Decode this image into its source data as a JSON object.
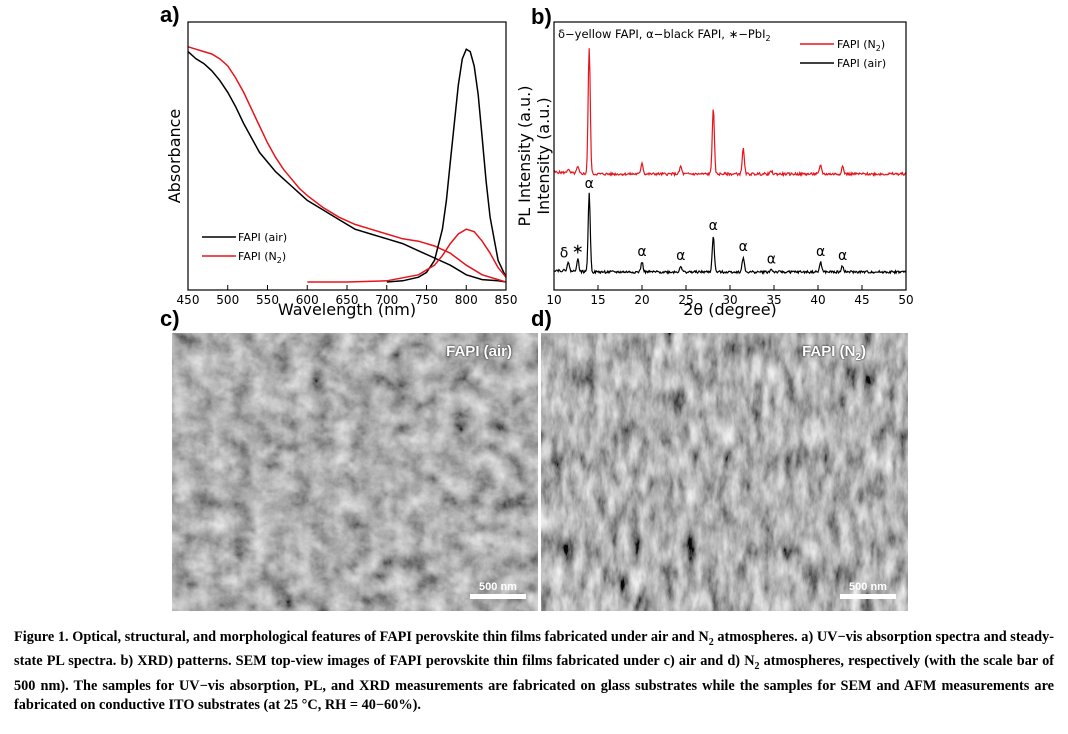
{
  "panels": {
    "a": "a)",
    "b": "b)",
    "c": "c)",
    "d": "d)"
  },
  "chart_data": [
    {
      "type": "line",
      "panel": "a",
      "xlabel": "Wavelength (nm)",
      "ylabel": "Absorbance",
      "ylabel_right": "PL Intensity (a.u.)",
      "xlim": [
        450,
        850
      ],
      "ylim": [
        0,
        1
      ],
      "xticks": [
        "450",
        "500",
        "550",
        "600",
        "650",
        "700",
        "750",
        "800",
        "850"
      ],
      "legend": [
        {
          "name": "FAPI (air)",
          "color": "#000000"
        },
        {
          "name": "FAPI (N",
          "sub": "2",
          "tail": ")",
          "color": "#e8141b"
        }
      ],
      "legend_position": "bottom-left",
      "series": [
        {
          "name": "FAPI (air) absorbance",
          "color": "#000000",
          "x": [
            450,
            460,
            470,
            480,
            490,
            500,
            510,
            520,
            530,
            540,
            550,
            560,
            570,
            580,
            590,
            600,
            620,
            640,
            660,
            680,
            700,
            720,
            740,
            760,
            780,
            800,
            820,
            840,
            850
          ],
          "y": [
            0.96,
            0.93,
            0.91,
            0.88,
            0.84,
            0.79,
            0.73,
            0.66,
            0.6,
            0.54,
            0.5,
            0.46,
            0.43,
            0.4,
            0.37,
            0.34,
            0.3,
            0.26,
            0.22,
            0.2,
            0.18,
            0.16,
            0.13,
            0.1,
            0.07,
            0.03,
            0.01,
            0.005,
            0.0
          ]
        },
        {
          "name": "FAPI (N2) absorbance",
          "color": "#e8141b",
          "x": [
            450,
            460,
            470,
            480,
            490,
            500,
            510,
            520,
            530,
            540,
            550,
            560,
            570,
            580,
            590,
            600,
            620,
            640,
            660,
            680,
            700,
            720,
            740,
            760,
            780,
            800,
            820,
            840,
            850
          ],
          "y": [
            0.98,
            0.97,
            0.96,
            0.95,
            0.93,
            0.9,
            0.85,
            0.79,
            0.72,
            0.65,
            0.58,
            0.52,
            0.47,
            0.43,
            0.39,
            0.36,
            0.31,
            0.27,
            0.24,
            0.22,
            0.2,
            0.18,
            0.17,
            0.15,
            0.12,
            0.07,
            0.03,
            0.01,
            0.0
          ]
        },
        {
          "name": "FAPI (air) PL",
          "color": "#000000",
          "x": [
            700,
            720,
            740,
            750,
            760,
            770,
            775,
            780,
            785,
            790,
            795,
            800,
            805,
            810,
            815,
            820,
            825,
            830,
            840,
            850
          ],
          "y": [
            0.0,
            0.005,
            0.02,
            0.04,
            0.09,
            0.22,
            0.34,
            0.5,
            0.66,
            0.82,
            0.93,
            0.97,
            0.96,
            0.9,
            0.78,
            0.6,
            0.42,
            0.27,
            0.09,
            0.02
          ]
        },
        {
          "name": "FAPI (N2) PL",
          "color": "#e8141b",
          "x": [
            600,
            650,
            700,
            740,
            760,
            770,
            780,
            790,
            800,
            810,
            820,
            830,
            840,
            850
          ],
          "y": [
            0.0,
            0.0,
            0.005,
            0.03,
            0.07,
            0.11,
            0.16,
            0.2,
            0.22,
            0.21,
            0.17,
            0.12,
            0.06,
            0.02
          ]
        }
      ]
    },
    {
      "type": "line",
      "panel": "b",
      "xlabel": "2θ (degree)",
      "ylabel": "Intensity (a.u.)",
      "xlim": [
        10,
        50
      ],
      "xticks": [
        "10",
        "15",
        "20",
        "25",
        "30",
        "35",
        "40",
        "45",
        "50"
      ],
      "annotation": "δ−yellow FAPI, α−black FAPI, ∗−PbI",
      "annotation_sub": "2",
      "legend": [
        {
          "name": "FAPI (N",
          "sub": "2",
          "tail": ")",
          "color": "#e8141b"
        },
        {
          "name": "FAPI (air)",
          "color": "#000000"
        }
      ],
      "legend_position": "top-right",
      "peaks_labels": [
        {
          "x": 11.6,
          "label": "δ"
        },
        {
          "x": 12.7,
          "label": "∗"
        },
        {
          "x": 14.0,
          "label": "α"
        },
        {
          "x": 20.0,
          "label": "α"
        },
        {
          "x": 24.4,
          "label": "α"
        },
        {
          "x": 28.1,
          "label": "α"
        },
        {
          "x": 31.5,
          "label": "α"
        },
        {
          "x": 34.7,
          "label": "α"
        },
        {
          "x": 40.3,
          "label": "α"
        },
        {
          "x": 42.8,
          "label": "α"
        }
      ],
      "series": [
        {
          "name": "FAPI (N2)",
          "color": "#e8141b",
          "offset": 0.55,
          "peaks": [
            {
              "x": 11.6,
              "h": 0.03
            },
            {
              "x": 12.7,
              "h": 0.05
            },
            {
              "x": 14.0,
              "h": 1.0
            },
            {
              "x": 20.0,
              "h": 0.09
            },
            {
              "x": 24.4,
              "h": 0.06
            },
            {
              "x": 28.1,
              "h": 0.52
            },
            {
              "x": 31.5,
              "h": 0.2
            },
            {
              "x": 34.7,
              "h": 0.02
            },
            {
              "x": 40.3,
              "h": 0.07
            },
            {
              "x": 42.8,
              "h": 0.06
            }
          ]
        },
        {
          "name": "FAPI (air)",
          "color": "#000000",
          "offset": 0.0,
          "peaks": [
            {
              "x": 11.6,
              "h": 0.07
            },
            {
              "x": 12.7,
              "h": 0.1
            },
            {
              "x": 14.0,
              "h": 0.63
            },
            {
              "x": 20.0,
              "h": 0.08
            },
            {
              "x": 24.4,
              "h": 0.05
            },
            {
              "x": 28.1,
              "h": 0.29
            },
            {
              "x": 31.5,
              "h": 0.12
            },
            {
              "x": 34.7,
              "h": 0.02
            },
            {
              "x": 40.3,
              "h": 0.08
            },
            {
              "x": 42.8,
              "h": 0.05
            }
          ]
        }
      ]
    }
  ],
  "sem": {
    "c": {
      "label": "FAPI (air)",
      "scale": "500 nm"
    },
    "d": {
      "label_main": "FAPI (N",
      "label_sub": "2",
      "label_tail": ")",
      "scale": "500 nm"
    }
  },
  "caption": {
    "lead_1": "Figure 1. Optical, structural, and morphological features of FAPI perovskite thin films fabricated under air and N",
    "lead_sub": "2",
    "lead_2": " atmospheres. a) UV−vis absorption spectra and steady-state PL spectra. b) XRD) patterns. SEM top-view images of FAPI perovskite thin films fabricated under c) air and d) N",
    "lead_sub2": "2",
    "lead_3": " atmospheres, respectively (with the scale bar of 500 nm). The samples for UV−vis absorption, PL, and XRD measurements are fabricated on glass substrates while the samples for SEM and AFM measurements are fabricated on conductive ITO substrates (at 25 °C, RH = 40−60%)."
  }
}
